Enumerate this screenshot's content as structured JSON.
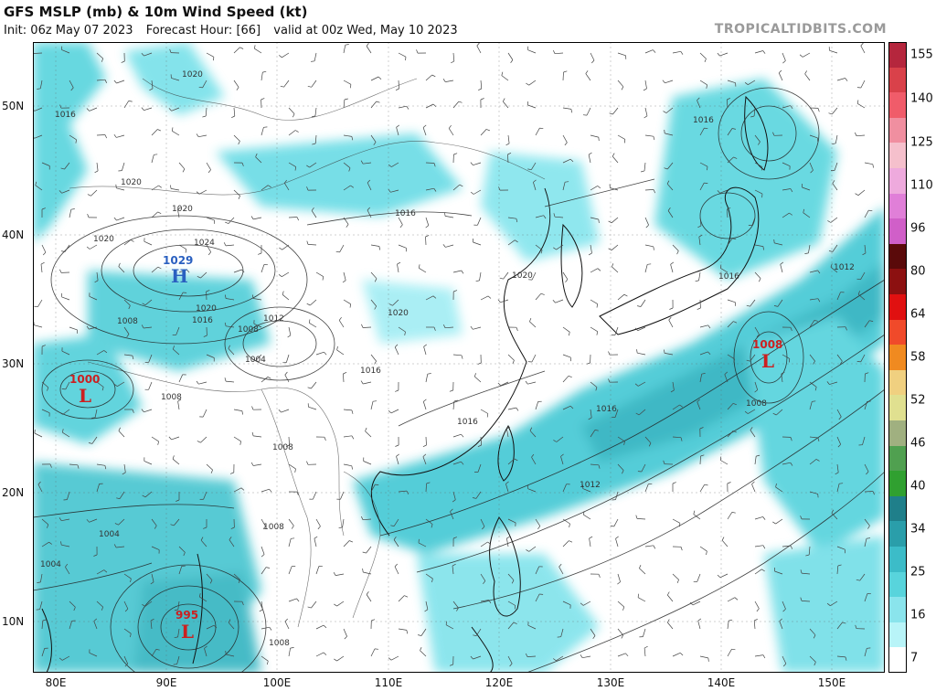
{
  "header": {
    "title": "GFS MSLP (mb) & 10m Wind Speed (kt)",
    "init": "Init: 06z May 07 2023",
    "forecast_hour": "Forecast Hour: [66]",
    "valid": "valid at 00z Wed, May 10 2023",
    "brand": "TROPICALTIDBITS.COM"
  },
  "axes": {
    "lat_labels": [
      "50N",
      "40N",
      "30N",
      "20N",
      "10N"
    ],
    "lon_labels": [
      "80E",
      "90E",
      "100E",
      "110E",
      "120E",
      "130E",
      "140E",
      "150E"
    ]
  },
  "colorbar": {
    "labels": [
      "155",
      "140",
      "125",
      "110",
      "96",
      "80",
      "64",
      "58",
      "52",
      "46",
      "40",
      "34",
      "25",
      "16",
      "7"
    ],
    "colors": [
      "#b5263d",
      "#d9414a",
      "#f05c6a",
      "#f08fa0",
      "#f5c0cc",
      "#eeaadd",
      "#e07fd8",
      "#d05fc8",
      "#5a0a0a",
      "#8c1010",
      "#e01010",
      "#f04a2a",
      "#f08a20",
      "#f0d080",
      "#e0e090",
      "#a0b080",
      "#50a050",
      "#30a030",
      "#1f7f8a",
      "#2a9eaa",
      "#3cbcc8",
      "#58d4dc",
      "#8ae4ec",
      "#b8f4f8",
      "#ffffff"
    ]
  },
  "pressure_centers": [
    {
      "type": "H",
      "value": "1029",
      "color": "#2a60c0"
    },
    {
      "type": "L",
      "value": "1000",
      "color": "#cc2020"
    },
    {
      "type": "L",
      "value": "1008",
      "color": "#cc2020"
    },
    {
      "type": "L",
      "value": "995",
      "color": "#cc2020"
    }
  ],
  "isobar_labels": [
    "1020",
    "1016",
    "1020",
    "1020",
    "1020",
    "1016",
    "1024",
    "1020",
    "1016",
    "1008",
    "1012",
    "1008",
    "1020",
    "1004",
    "1016",
    "1008",
    "1016",
    "1012",
    "1016",
    "1008",
    "1016",
    "1008",
    "1012",
    "1004",
    "1004",
    "1008",
    "1016",
    "1020",
    "1008"
  ]
}
